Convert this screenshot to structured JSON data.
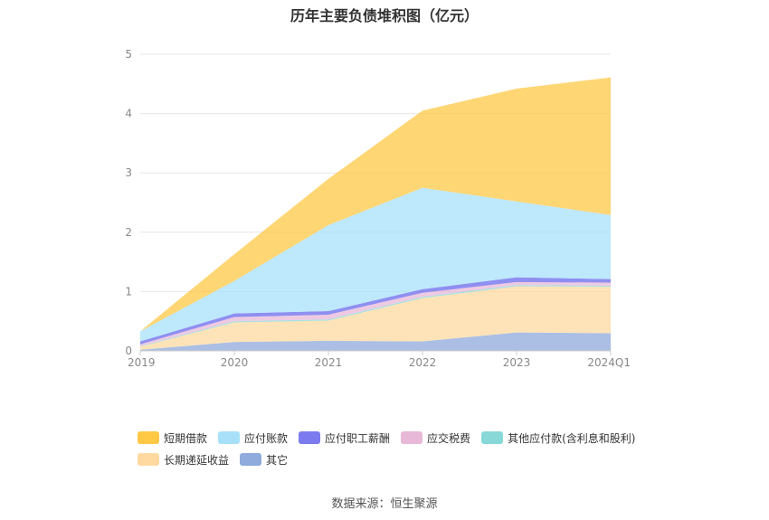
{
  "chart_data": {
    "type": "area",
    "stacked": true,
    "title": "历年主要负债堆积图（亿元）",
    "categories": [
      "2019",
      "2020",
      "2021",
      "2022",
      "2023",
      "2024Q1"
    ],
    "yticks": [
      "0",
      "1",
      "2",
      "3",
      "4",
      "5"
    ],
    "ylim": [
      0,
      5
    ],
    "grid": true,
    "legend_position": "bottom",
    "series": [
      {
        "name": "其它",
        "color": "#8faadc",
        "values": [
          0.02,
          0.15,
          0.17,
          0.16,
          0.31,
          0.3
        ]
      },
      {
        "name": "长期递延收益",
        "color": "#ffd9a0",
        "values": [
          0.05,
          0.33,
          0.34,
          0.73,
          0.78,
          0.78
        ]
      },
      {
        "name": "其他应付款(含利息和股利)",
        "color": "#88d8d8",
        "values": [
          0.01,
          0.02,
          0.02,
          0.02,
          0.02,
          0.02
        ]
      },
      {
        "name": "应交税费",
        "color": "#e8b8d8",
        "values": [
          0.03,
          0.07,
          0.08,
          0.07,
          0.05,
          0.05
        ]
      },
      {
        "name": "应付职工薪酬",
        "color": "#7b7bef",
        "values": [
          0.05,
          0.06,
          0.06,
          0.06,
          0.08,
          0.06
        ]
      },
      {
        "name": "应付账款",
        "color": "#a8e0fa",
        "values": [
          0.17,
          0.55,
          1.45,
          1.71,
          1.28,
          1.08
        ]
      },
      {
        "name": "短期借款",
        "color": "#ffc845",
        "values": [
          0.0,
          0.45,
          0.78,
          1.3,
          1.9,
          2.32
        ]
      }
    ],
    "legend_order": [
      "短期借款",
      "应付账款",
      "应付职工薪酬",
      "应交税费",
      "其他应付款(含利息和股利)",
      "长期递延收益",
      "其它"
    ]
  },
  "source": "数据来源：恒生聚源"
}
